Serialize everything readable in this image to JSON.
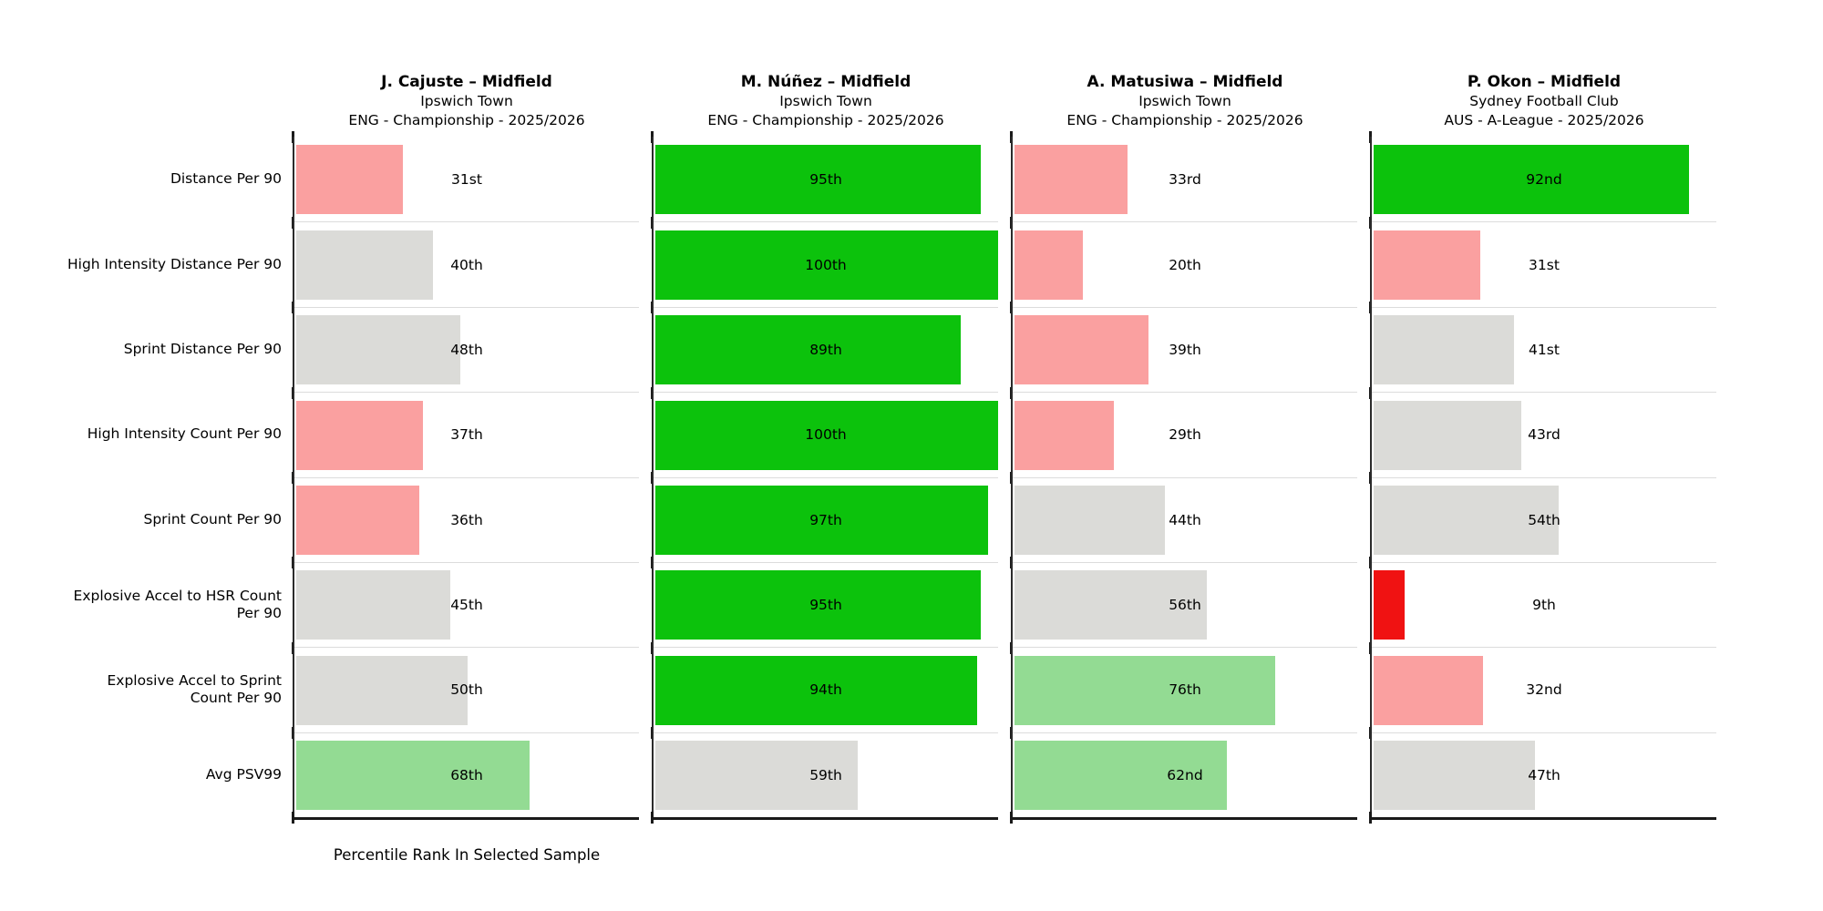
{
  "xlabel": "Percentile Rank In Selected Sample",
  "chart_data": {
    "type": "bar",
    "orientation": "horizontal",
    "xlim": [
      0,
      100
    ],
    "xlabel": "Percentile Rank In Selected Sample",
    "grid": "row-separators",
    "legend": "none",
    "value_label_position": "panel-center",
    "categories": [
      "Distance Per 90",
      "High Intensity Distance Per 90",
      "Sprint Distance Per 90",
      "High Intensity Count Per 90",
      "Sprint Count Per 90",
      "Explosive Accel to HSR Count Per 90",
      "Explosive Accel to Sprint Count Per 90",
      "Avg PSV99"
    ],
    "category_display": [
      "Distance Per 90",
      "High Intensity Distance Per 90",
      "Sprint Distance Per 90",
      "High Intensity Count Per 90",
      "Sprint Count Per 90",
      "Explosive Accel to HSR Count\nPer 90",
      "Explosive Accel to Sprint\nCount Per 90",
      "Avg PSV99"
    ],
    "tier_colors": {
      "excellent": "#0cc20c",
      "good": "#93db93",
      "average": "#dbdbd8",
      "below_average": "#faa0a0",
      "poor": "#f01212"
    },
    "panels": [
      {
        "title": "J. Cajuste – Midfield",
        "subtitle": "Ipswich Town",
        "competition": "ENG - Championship - 2025/2026",
        "bars": [
          {
            "metric": "Distance Per 90",
            "percentile": 31,
            "label": "31st",
            "tier": "below_average"
          },
          {
            "metric": "High Intensity Distance Per 90",
            "percentile": 40,
            "label": "40th",
            "tier": "average"
          },
          {
            "metric": "Sprint Distance Per 90",
            "percentile": 48,
            "label": "48th",
            "tier": "average"
          },
          {
            "metric": "High Intensity Count Per 90",
            "percentile": 37,
            "label": "37th",
            "tier": "below_average"
          },
          {
            "metric": "Sprint Count Per 90",
            "percentile": 36,
            "label": "36th",
            "tier": "below_average"
          },
          {
            "metric": "Explosive Accel to HSR Count Per 90",
            "percentile": 45,
            "label": "45th",
            "tier": "average"
          },
          {
            "metric": "Explosive Accel to Sprint Count Per 90",
            "percentile": 50,
            "label": "50th",
            "tier": "average"
          },
          {
            "metric": "Avg PSV99",
            "percentile": 68,
            "label": "68th",
            "tier": "good"
          }
        ]
      },
      {
        "title": "M. Núñez – Midfield",
        "subtitle": "Ipswich Town",
        "competition": "ENG - Championship - 2025/2026",
        "bars": [
          {
            "metric": "Distance Per 90",
            "percentile": 95,
            "label": "95th",
            "tier": "excellent"
          },
          {
            "metric": "High Intensity Distance Per 90",
            "percentile": 100,
            "label": "100th",
            "tier": "excellent"
          },
          {
            "metric": "Sprint Distance Per 90",
            "percentile": 89,
            "label": "89th",
            "tier": "excellent"
          },
          {
            "metric": "High Intensity Count Per 90",
            "percentile": 100,
            "label": "100th",
            "tier": "excellent"
          },
          {
            "metric": "Sprint Count Per 90",
            "percentile": 97,
            "label": "97th",
            "tier": "excellent"
          },
          {
            "metric": "Explosive Accel to HSR Count Per 90",
            "percentile": 95,
            "label": "95th",
            "tier": "excellent"
          },
          {
            "metric": "Explosive Accel to Sprint Count Per 90",
            "percentile": 94,
            "label": "94th",
            "tier": "excellent"
          },
          {
            "metric": "Avg PSV99",
            "percentile": 59,
            "label": "59th",
            "tier": "average"
          }
        ]
      },
      {
        "title": "A. Matusiwa – Midfield",
        "subtitle": "Ipswich Town",
        "competition": "ENG - Championship - 2025/2026",
        "bars": [
          {
            "metric": "Distance Per 90",
            "percentile": 33,
            "label": "33rd",
            "tier": "below_average"
          },
          {
            "metric": "High Intensity Distance Per 90",
            "percentile": 20,
            "label": "20th",
            "tier": "below_average"
          },
          {
            "metric": "Sprint Distance Per 90",
            "percentile": 39,
            "label": "39th",
            "tier": "below_average"
          },
          {
            "metric": "High Intensity Count Per 90",
            "percentile": 29,
            "label": "29th",
            "tier": "below_average"
          },
          {
            "metric": "Sprint Count Per 90",
            "percentile": 44,
            "label": "44th",
            "tier": "average"
          },
          {
            "metric": "Explosive Accel to HSR Count Per 90",
            "percentile": 56,
            "label": "56th",
            "tier": "average"
          },
          {
            "metric": "Explosive Accel to Sprint Count Per 90",
            "percentile": 76,
            "label": "76th",
            "tier": "good"
          },
          {
            "metric": "Avg PSV99",
            "percentile": 62,
            "label": "62nd",
            "tier": "good"
          }
        ]
      },
      {
        "title": "P. Okon – Midfield",
        "subtitle": "Sydney Football Club",
        "competition": "AUS - A-League - 2025/2026",
        "bars": [
          {
            "metric": "Distance Per 90",
            "percentile": 92,
            "label": "92nd",
            "tier": "excellent"
          },
          {
            "metric": "High Intensity Distance Per 90",
            "percentile": 31,
            "label": "31st",
            "tier": "below_average"
          },
          {
            "metric": "Sprint Distance Per 90",
            "percentile": 41,
            "label": "41st",
            "tier": "average"
          },
          {
            "metric": "High Intensity Count Per 90",
            "percentile": 43,
            "label": "43rd",
            "tier": "average"
          },
          {
            "metric": "Sprint Count Per 90",
            "percentile": 54,
            "label": "54th",
            "tier": "average"
          },
          {
            "metric": "Explosive Accel to HSR Count Per 90",
            "percentile": 9,
            "label": "9th",
            "tier": "poor"
          },
          {
            "metric": "Explosive Accel to Sprint Count Per 90",
            "percentile": 32,
            "label": "32nd",
            "tier": "below_average"
          },
          {
            "metric": "Avg PSV99",
            "percentile": 47,
            "label": "47th",
            "tier": "average"
          }
        ]
      }
    ]
  }
}
